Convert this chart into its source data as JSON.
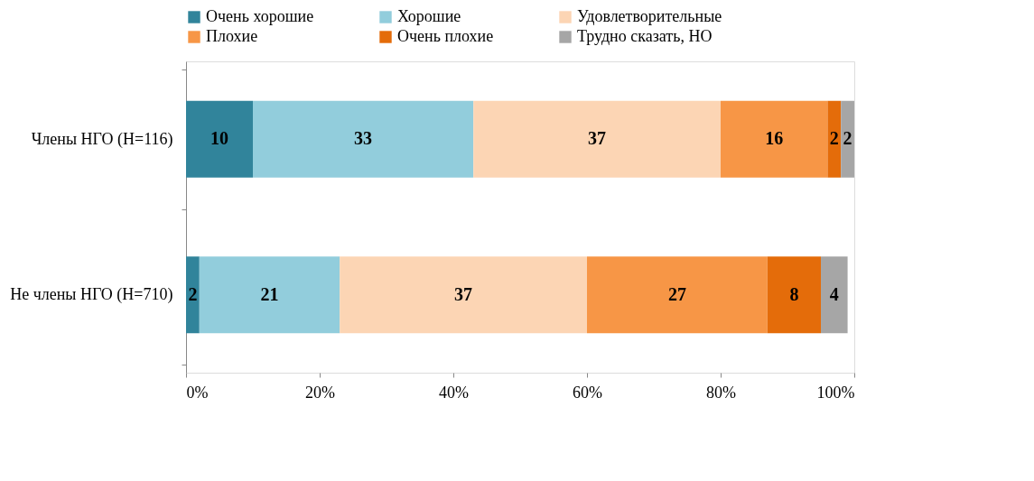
{
  "chart_data": {
    "type": "bar",
    "orientation": "horizontal",
    "stacked": true,
    "data_labels": true,
    "legend": "top",
    "grid": false,
    "categories": [
      "Члены НГО (Н=116)",
      "Не члены НГО (Н=710)"
    ],
    "series": [
      {
        "name": "Очень хорошие",
        "color": "#31849b",
        "values": [
          10,
          2
        ]
      },
      {
        "name": "Хорошие",
        "color": "#92cddc",
        "values": [
          33,
          21
        ]
      },
      {
        "name": "Удовлетворительные",
        "color": "#fcd5b4",
        "values": [
          37,
          37
        ]
      },
      {
        "name": "Плохие",
        "color": "#f79646",
        "values": [
          16,
          27
        ]
      },
      {
        "name": "Очень плохие",
        "color": "#e46c0a",
        "values": [
          2,
          8
        ]
      },
      {
        "name": "Трудно сказать, НО",
        "color": "#a6a6a6",
        "values": [
          2,
          4
        ]
      }
    ],
    "xlim": [
      0,
      100
    ],
    "xticks": [
      {
        "value": 0,
        "label": "0%"
      },
      {
        "value": 20,
        "label": "20%"
      },
      {
        "value": 40,
        "label": "40%"
      },
      {
        "value": 60,
        "label": "60%"
      },
      {
        "value": 80,
        "label": "80%"
      },
      {
        "value": 100,
        "label": "100%"
      }
    ]
  }
}
